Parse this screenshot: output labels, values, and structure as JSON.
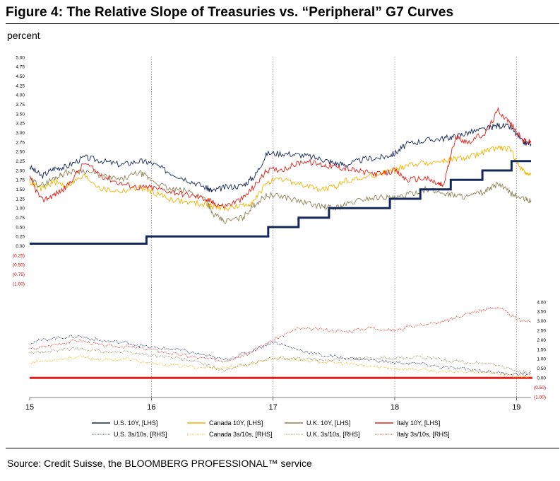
{
  "figure": {
    "title": "Figure 4: The Relative Slope of Treasuries vs. “Peripheral” G7 Curves",
    "unit": "percent",
    "source": "Source: Credit Suisse, the BLOOMBERG PROFESSIONAL™ service"
  },
  "chart_data": {
    "type": "line",
    "x_range": [
      2015.0,
      2019.12
    ],
    "x_ticks": [
      "15",
      "16",
      "17",
      "18",
      "19"
    ],
    "lhs": {
      "ylim": [
        -1.0,
        5.0
      ],
      "tick_labels": [
        "5.00",
        "4.75",
        "4.50",
        "4.25",
        "4.00",
        "3.75",
        "3.50",
        "3.25",
        "3.00",
        "2.75",
        "2.50",
        "2.25",
        "2.00",
        "1.75",
        "1.50",
        "1.25",
        "1.00",
        "0.75",
        "0.50",
        "0.25",
        "0.00",
        "(0.25)",
        "(0.50)",
        "(0.75)",
        "(1.00)"
      ]
    },
    "rhs": {
      "ylim": [
        -1.0,
        4.0
      ],
      "tick_labels": [
        "4.00",
        "3.50",
        "3.00",
        "2.50",
        "2.00",
        "1.50",
        "1.00",
        "0.50",
        "0.00",
        "(0.50)",
        "(1.00)"
      ]
    },
    "grid": "vertical dotted at year boundaries",
    "legend_position": "bottom",
    "series": [
      {
        "name": "U.S. 10Y, [LHS]",
        "axis": "lhs",
        "style": "solid",
        "color": "#14285a",
        "x": [
          2015.0,
          2015.1,
          2015.2,
          2015.3,
          2015.45,
          2015.6,
          2015.75,
          2015.9,
          2016.0,
          2016.15,
          2016.3,
          2016.45,
          2016.5,
          2016.6,
          2016.75,
          2016.85,
          2016.95,
          2017.1,
          2017.25,
          2017.4,
          2017.5,
          2017.6,
          2017.75,
          2017.9,
          2018.0,
          2018.1,
          2018.25,
          2018.4,
          2018.5,
          2018.6,
          2018.75,
          2018.85,
          2018.95,
          2019.05,
          2019.12
        ],
        "values": [
          2.1,
          1.85,
          2.05,
          2.1,
          2.35,
          2.25,
          2.15,
          2.25,
          2.2,
          1.95,
          1.75,
          1.55,
          1.45,
          1.55,
          1.6,
          1.85,
          2.45,
          2.45,
          2.4,
          2.3,
          2.2,
          2.15,
          2.3,
          2.35,
          2.45,
          2.7,
          2.8,
          2.85,
          2.9,
          3.0,
          3.1,
          3.2,
          3.15,
          2.75,
          2.7
        ]
      },
      {
        "name": "Canada 10Y, [LHS]",
        "axis": "lhs",
        "style": "solid",
        "color": "#f0b400",
        "x": [
          2015.0,
          2015.1,
          2015.2,
          2015.3,
          2015.45,
          2015.6,
          2015.75,
          2015.9,
          2016.0,
          2016.15,
          2016.3,
          2016.45,
          2016.5,
          2016.6,
          2016.75,
          2016.85,
          2016.95,
          2017.1,
          2017.25,
          2017.4,
          2017.5,
          2017.6,
          2017.75,
          2017.9,
          2018.0,
          2018.1,
          2018.25,
          2018.4,
          2018.5,
          2018.6,
          2018.75,
          2018.85,
          2018.95,
          2019.05,
          2019.12
        ],
        "values": [
          1.7,
          1.5,
          1.7,
          1.6,
          1.85,
          1.5,
          1.45,
          1.55,
          1.45,
          1.25,
          1.15,
          1.1,
          1.05,
          1.0,
          1.05,
          1.2,
          1.7,
          1.75,
          1.6,
          1.5,
          1.55,
          1.75,
          1.8,
          1.95,
          2.0,
          2.15,
          2.2,
          2.25,
          2.3,
          2.35,
          2.5,
          2.6,
          2.55,
          2.0,
          1.9
        ]
      },
      {
        "name": "U.K. 10Y, [LHS]",
        "axis": "lhs",
        "style": "solid",
        "color": "#8c8355",
        "x": [
          2015.0,
          2015.1,
          2015.2,
          2015.3,
          2015.45,
          2015.6,
          2015.75,
          2015.9,
          2016.0,
          2016.15,
          2016.3,
          2016.45,
          2016.5,
          2016.6,
          2016.75,
          2016.85,
          2016.95,
          2017.1,
          2017.25,
          2017.4,
          2017.5,
          2017.6,
          2017.75,
          2017.9,
          2018.0,
          2018.1,
          2018.25,
          2018.4,
          2018.5,
          2018.6,
          2018.75,
          2018.85,
          2018.95,
          2019.05,
          2019.12
        ],
        "values": [
          1.75,
          1.6,
          1.8,
          1.95,
          2.0,
          1.85,
          1.75,
          1.95,
          1.75,
          1.5,
          1.45,
          1.25,
          0.85,
          0.65,
          0.75,
          1.1,
          1.35,
          1.3,
          1.15,
          1.05,
          1.0,
          1.1,
          1.25,
          1.3,
          1.25,
          1.35,
          1.5,
          1.4,
          1.35,
          1.3,
          1.45,
          1.65,
          1.4,
          1.25,
          1.2
        ]
      },
      {
        "name": "Italy 10Y, [LHS]",
        "axis": "lhs",
        "style": "solid",
        "color": "#e0201a",
        "x": [
          2015.0,
          2015.1,
          2015.2,
          2015.3,
          2015.45,
          2015.6,
          2015.75,
          2015.9,
          2016.0,
          2016.15,
          2016.3,
          2016.45,
          2016.5,
          2016.6,
          2016.75,
          2016.85,
          2016.95,
          2017.1,
          2017.25,
          2017.4,
          2017.5,
          2017.6,
          2017.75,
          2017.9,
          2018.0,
          2018.1,
          2018.25,
          2018.35,
          2018.4,
          2018.5,
          2018.6,
          2018.75,
          2018.85,
          2018.95,
          2019.05,
          2019.12
        ],
        "values": [
          1.8,
          1.2,
          1.35,
          1.55,
          2.2,
          1.85,
          1.65,
          1.55,
          1.55,
          1.45,
          1.35,
          1.25,
          1.15,
          1.05,
          1.25,
          1.6,
          2.0,
          2.05,
          2.25,
          2.15,
          2.1,
          2.05,
          1.95,
          1.9,
          2.0,
          1.75,
          1.8,
          1.65,
          1.6,
          2.9,
          2.75,
          3.0,
          3.6,
          3.25,
          2.8,
          2.75
        ]
      },
      {
        "name": "Policy rate step line",
        "axis": "lhs",
        "style": "step-bold",
        "color": "#14285a",
        "x": [
          2015.0,
          2015.96,
          2015.96,
          2016.96,
          2016.96,
          2017.21,
          2017.21,
          2017.46,
          2017.46,
          2017.96,
          2017.96,
          2018.21,
          2018.21,
          2018.46,
          2018.46,
          2018.72,
          2018.72,
          2018.96,
          2018.96,
          2019.12
        ],
        "values": [
          0.06,
          0.06,
          0.25,
          0.25,
          0.5,
          0.5,
          0.75,
          0.75,
          1.0,
          1.0,
          1.25,
          1.25,
          1.5,
          1.5,
          1.75,
          1.75,
          2.0,
          2.0,
          2.25,
          2.25
        ]
      },
      {
        "name": "U.S. 3s/10s, [RHS]",
        "axis": "rhs",
        "style": "dotted",
        "color": "#14285a",
        "x": [
          2015.0,
          2015.2,
          2015.4,
          2015.6,
          2015.8,
          2016.0,
          2016.2,
          2016.4,
          2016.6,
          2016.8,
          2017.0,
          2017.2,
          2017.4,
          2017.6,
          2017.8,
          2018.0,
          2018.2,
          2018.4,
          2018.6,
          2018.8,
          2019.0,
          2019.12
        ],
        "values": [
          1.85,
          2.1,
          2.2,
          1.95,
          1.85,
          1.6,
          1.5,
          1.25,
          0.95,
          1.35,
          1.9,
          1.5,
          1.2,
          1.05,
          0.95,
          0.8,
          0.75,
          0.55,
          0.45,
          0.3,
          0.2,
          0.2
        ]
      },
      {
        "name": "Canada 3s/10s, [RHS]",
        "axis": "rhs",
        "style": "dotted",
        "color": "#f0b400",
        "x": [
          2015.0,
          2015.2,
          2015.4,
          2015.6,
          2015.8,
          2016.0,
          2016.2,
          2016.4,
          2016.6,
          2016.8,
          2017.0,
          2017.2,
          2017.4,
          2017.6,
          2017.8,
          2018.0,
          2018.2,
          2018.4,
          2018.6,
          2018.8,
          2019.0,
          2019.12
        ],
        "values": [
          0.8,
          0.95,
          1.1,
          0.95,
          1.0,
          0.75,
          0.65,
          0.55,
          0.55,
          0.7,
          1.05,
          0.95,
          0.85,
          0.75,
          0.6,
          0.5,
          0.45,
          0.3,
          0.35,
          0.25,
          0.05,
          0.05
        ]
      },
      {
        "name": "U.K. 3s/10s, [RHS]",
        "axis": "rhs",
        "style": "dotted",
        "color": "#8c8355",
        "x": [
          2015.0,
          2015.2,
          2015.4,
          2015.6,
          2015.8,
          2016.0,
          2016.2,
          2016.4,
          2016.6,
          2016.8,
          2017.0,
          2017.2,
          2017.4,
          2017.6,
          2017.8,
          2018.0,
          2018.2,
          2018.4,
          2018.6,
          2018.8,
          2019.0,
          2019.12
        ],
        "values": [
          1.3,
          1.45,
          1.55,
          1.4,
          1.35,
          1.2,
          1.05,
          0.8,
          0.35,
          0.75,
          1.05,
          1.0,
          0.95,
          1.0,
          1.05,
          1.05,
          1.1,
          0.95,
          0.8,
          0.75,
          0.35,
          0.3
        ]
      },
      {
        "name": "Italy 3s/10s, [RHS]",
        "axis": "rhs",
        "style": "dotted",
        "color": "#e0201a",
        "x": [
          2015.0,
          2015.2,
          2015.4,
          2015.6,
          2015.8,
          2016.0,
          2016.2,
          2016.4,
          2016.6,
          2016.8,
          2017.0,
          2017.2,
          2017.4,
          2017.6,
          2017.8,
          2018.0,
          2018.2,
          2018.4,
          2018.55,
          2018.7,
          2018.85,
          2019.0,
          2019.12
        ],
        "values": [
          1.5,
          1.75,
          2.0,
          1.7,
          1.65,
          1.5,
          1.25,
          1.05,
          0.9,
          1.3,
          2.0,
          2.6,
          2.55,
          2.45,
          2.65,
          2.5,
          2.8,
          2.95,
          3.3,
          3.55,
          3.75,
          3.1,
          2.95
        ]
      }
    ]
  },
  "legend": [
    {
      "label": "U.S. 10Y, [LHS]",
      "color": "#14285a",
      "style": "solid"
    },
    {
      "label": "Canada 10Y, [LHS]",
      "color": "#f0b400",
      "style": "solid"
    },
    {
      "label": "U.K. 10Y, [LHS]",
      "color": "#8c8355",
      "style": "solid"
    },
    {
      "label": "Italy 10Y, [LHS]",
      "color": "#e0201a",
      "style": "solid"
    },
    {
      "label": "U.S. 3s/10s, [RHS]",
      "color": "#14285a",
      "style": "dotted"
    },
    {
      "label": "Canada 3s/10s, [RHS]",
      "color": "#f0b400",
      "style": "dotted"
    },
    {
      "label": "U.K. 3s/10s, [RHS]",
      "color": "#8c8355",
      "style": "dotted"
    },
    {
      "label": "Italy 3s/10s, [RHS]",
      "color": "#e0201a",
      "style": "dotted"
    }
  ],
  "colors": {
    "zero_line": "#e0201a",
    "navy": "#14285a",
    "gold": "#f0b400",
    "olive": "#8c8355",
    "red": "#e0201a"
  }
}
